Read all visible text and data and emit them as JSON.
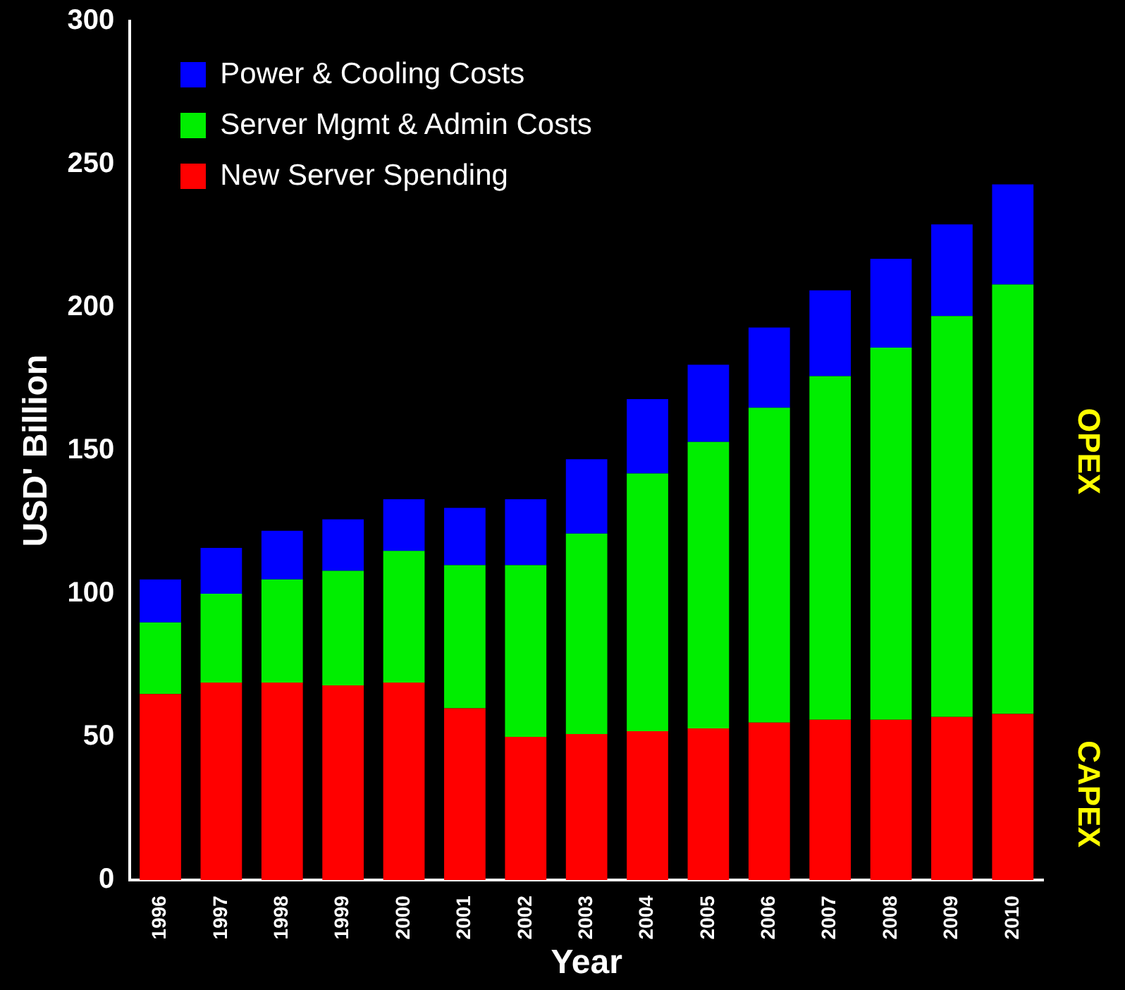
{
  "chart_data": {
    "type": "bar",
    "stacked": true,
    "xlabel": "Year",
    "ylabel": "USD' Billion",
    "categories": [
      "1996",
      "1997",
      "1998",
      "1999",
      "2000",
      "2001",
      "2002",
      "2003",
      "2004",
      "2005",
      "2006",
      "2007",
      "2008",
      "2009",
      "2010"
    ],
    "series": [
      {
        "name": "New Server Spending",
        "color": "#ff0000",
        "values": [
          65,
          69,
          69,
          68,
          69,
          60,
          50,
          51,
          52,
          53,
          55,
          56,
          56,
          57,
          58
        ]
      },
      {
        "name": "Server Mgmt & Admin Costs",
        "color": "#00ee00",
        "values": [
          25,
          31,
          36,
          40,
          46,
          50,
          60,
          70,
          90,
          100,
          110,
          120,
          130,
          140,
          150
        ]
      },
      {
        "name": "Power & Cooling Costs",
        "color": "#0000ff",
        "values": [
          15,
          16,
          17,
          18,
          18,
          20,
          23,
          26,
          26,
          27,
          28,
          30,
          31,
          32,
          35
        ]
      }
    ],
    "ylim": [
      0,
      300
    ],
    "yticks": [
      0,
      50,
      100,
      150,
      200,
      250,
      300
    ],
    "grid": false,
    "legend": "top left",
    "annotations": [
      "OPEX",
      "CAPEX"
    ]
  }
}
